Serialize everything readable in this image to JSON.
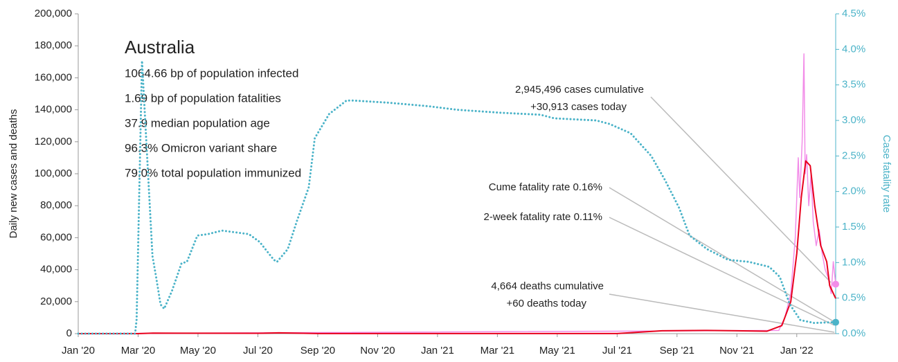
{
  "chart_data": {
    "type": "line",
    "title": "Australia",
    "info_lines": [
      "1064.66 bp of population infected",
      "1.69 bp of population fatalities",
      "37.9 median population age",
      "96.3% Omicron variant share",
      "79.0% total population immunized"
    ],
    "ylabel": "Daily new cases and deaths",
    "y2label": "Case fatality rate",
    "annotations": [
      "2,945,496 cases cumulative",
      "+30,913 cases today",
      "Cume fatality rate 0.16%",
      "2-week fatality rate 0.11%",
      "4,664 deaths cumulative",
      "+60 deaths today"
    ],
    "xlim": [
      0,
      25.3
    ],
    "xticks": [
      {
        "value": 0,
        "label": "Jan '20"
      },
      {
        "value": 2,
        "label": "Mar '20"
      },
      {
        "value": 4,
        "label": "May '20"
      },
      {
        "value": 6,
        "label": "Jul '20"
      },
      {
        "value": 8,
        "label": "Sep '20"
      },
      {
        "value": 10,
        "label": "Nov '20"
      },
      {
        "value": 12,
        "label": "Jan '21"
      },
      {
        "value": 14,
        "label": "Mar '21"
      },
      {
        "value": 16,
        "label": "May '21"
      },
      {
        "value": 18,
        "label": "Jul '21"
      },
      {
        "value": 20,
        "label": "Sep '21"
      },
      {
        "value": 22,
        "label": "Nov '21"
      },
      {
        "value": 24,
        "label": "Jan '22"
      }
    ],
    "ylim": [
      0,
      200000
    ],
    "yticks": [
      0,
      {
        "value": 20000,
        "label": "20,000"
      },
      {
        "value": 40000,
        "label": "40,000"
      },
      {
        "value": 60000,
        "label": "60,000"
      },
      {
        "value": 80000,
        "label": "80,000"
      },
      {
        "value": 100000,
        "label": "100,000"
      },
      {
        "value": 120000,
        "label": "120,000"
      },
      {
        "value": 140000,
        "label": "140,000"
      },
      {
        "value": 160000,
        "label": "160,000"
      },
      {
        "value": 180000,
        "label": "180,000"
      },
      {
        "value": 200000,
        "label": "200,000"
      }
    ],
    "y2lim": [
      0,
      4.5
    ],
    "y2ticks": [
      {
        "value": 0,
        "label": "0.0%"
      },
      {
        "value": 0.5,
        "label": "0.5%"
      },
      {
        "value": 1,
        "label": "1.0%"
      },
      {
        "value": 1.5,
        "label": "1.5%"
      },
      {
        "value": 2,
        "label": "2.0%"
      },
      {
        "value": 2.5,
        "label": "2.5%"
      },
      {
        "value": 3,
        "label": "3.0%"
      },
      {
        "value": 3.5,
        "label": "3.5%"
      },
      {
        "value": 4,
        "label": "4.0%"
      },
      {
        "value": 4.5,
        "label": "4.5%"
      }
    ],
    "series": [
      {
        "color": "#f28ce8",
        "style": "solid",
        "width": 1.5,
        "end_dot": true,
        "x": [
          0,
          23.4,
          23.6,
          23.8,
          23.95,
          24.05,
          24.1,
          24.18,
          24.24,
          24.28,
          24.33,
          24.4,
          24.48,
          24.55,
          24.65,
          24.75,
          24.85,
          24.95,
          25.05,
          25.15,
          25.22,
          25.3
        ],
        "values": [
          0,
          2000,
          10000,
          25000,
          60000,
          110000,
          85000,
          120000,
          175000,
          100000,
          112000,
          80000,
          100000,
          70000,
          55000,
          65000,
          50000,
          40000,
          35000,
          25000,
          45000,
          30913
        ]
      },
      {
        "color": "#e8001c",
        "style": "solid",
        "width": 2,
        "x": [
          0,
          2,
          2.5,
          6,
          6.7,
          7.2,
          8,
          18,
          18.8,
          19.5,
          21,
          22,
          23,
          23.5,
          23.8,
          24,
          24.15,
          24.3,
          24.45,
          24.6,
          24.8,
          25,
          25.1,
          25.3
        ],
        "values": [
          0,
          0,
          300,
          200,
          500,
          300,
          50,
          50,
          1000,
          1800,
          2000,
          1800,
          1500,
          5000,
          20000,
          50000,
          85000,
          108000,
          105000,
          80000,
          55000,
          45000,
          30000,
          22000
        ]
      },
      {
        "color": "#4bb3c8",
        "style": "dotted",
        "width": 3,
        "axis": "y2",
        "end_dot": true,
        "x": [
          0,
          1.9,
          1.95,
          2.13,
          2.48,
          2.6,
          2.75,
          2.87,
          3.13,
          3.45,
          3.63,
          3.98,
          4.33,
          4.8,
          5.7,
          6.06,
          6.53,
          6.64,
          7,
          7.3,
          7.7,
          7.9,
          8.38,
          8.96,
          9.19,
          10.35,
          11.7,
          12.66,
          14.05,
          15.44,
          15.9,
          17.3,
          17.75,
          18.45,
          19.14,
          19.6,
          20.07,
          20.42,
          21,
          21.7,
          22.4,
          23.08,
          23.43,
          23.77,
          24.12,
          24.58,
          25.16,
          25.3
        ],
        "values": [
          0,
          0,
          0.2,
          3.84,
          1.09,
          0.8,
          0.41,
          0.35,
          0.6,
          0.99,
          1.01,
          1.38,
          1.4,
          1.45,
          1.4,
          1.29,
          1.04,
          1.01,
          1.19,
          1.58,
          2.06,
          2.75,
          3.09,
          3.28,
          3.28,
          3.25,
          3.2,
          3.15,
          3.11,
          3.08,
          3.03,
          3,
          2.95,
          2.82,
          2.5,
          2.16,
          1.77,
          1.38,
          1.19,
          1.04,
          1.01,
          0.94,
          0.8,
          0.41,
          0.19,
          0.15,
          0.16,
          0.16
        ]
      }
    ]
  }
}
